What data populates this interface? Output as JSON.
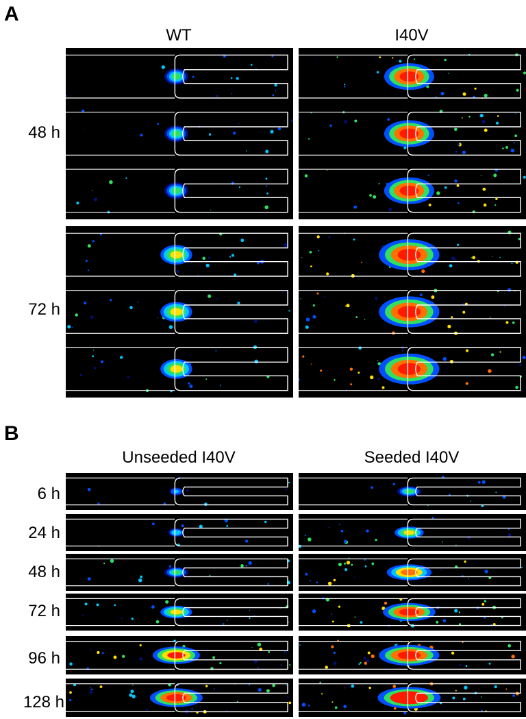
{
  "panel_a": {
    "letter": "A",
    "columns": [
      "WT",
      "I40V"
    ],
    "rows": [
      "48 h",
      "72 h"
    ],
    "mean_signal": [
      [
        0.25,
        0.75
      ],
      [
        0.4,
        0.95
      ]
    ]
  },
  "panel_b": {
    "letter": "B",
    "columns": [
      "Unseeded I40V",
      "Seeded I40V"
    ],
    "rows": [
      "6 h",
      "24 h",
      "48 h",
      "72 h",
      "96 h",
      "128 h"
    ],
    "mean_signal": [
      [
        0.05,
        0.25
      ],
      [
        0.1,
        0.35
      ],
      [
        0.25,
        0.65
      ],
      [
        0.4,
        0.8
      ],
      [
        0.7,
        0.95
      ],
      [
        0.8,
        1.0
      ]
    ]
  },
  "colormap": [
    "#00107a",
    "#0050ff",
    "#00c8ff",
    "#30e060",
    "#ffe000",
    "#ff7000",
    "#ff1a00"
  ],
  "outline_color": "#ffffff"
}
